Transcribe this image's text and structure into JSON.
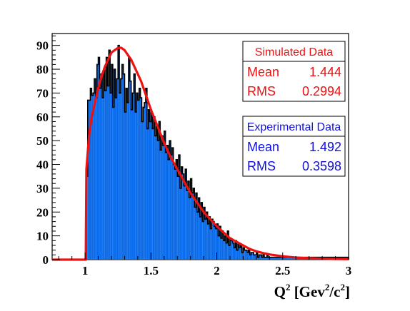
{
  "chart_data": {
    "type": "bar",
    "title": "",
    "xlabel": {
      "main": "Q",
      "sup1": "2",
      "open": " [Gev",
      "sup2": "2",
      "mid": "/c",
      "sup3": "2",
      "close": "]"
    },
    "ylabel": "",
    "xlim": [
      0.75,
      3.0
    ],
    "ylim": [
      0,
      95
    ],
    "x_ticks": [
      1,
      1.5,
      2,
      2.5,
      3
    ],
    "x_tick_labels": [
      "1",
      "1.5",
      "2",
      "2.5",
      "3"
    ],
    "y_ticks": [
      0,
      10,
      20,
      30,
      40,
      50,
      60,
      70,
      80,
      90
    ],
    "y_tick_labels": [
      "0",
      "10",
      "20",
      "30",
      "40",
      "50",
      "60",
      "70",
      "80",
      "90"
    ],
    "bin_width": 0.01,
    "series": [
      {
        "name": "Experimental Data",
        "color": "#0a6bea",
        "kind": "histogram-filled",
        "x_start": 1.0,
        "values": [
          0,
          35,
          67,
          67,
          72,
          69,
          70,
          76,
          68,
          82,
          85,
          72,
          78,
          68,
          80,
          71,
          85,
          73,
          88,
          70,
          82,
          64,
          80,
          68,
          76,
          90,
          70,
          76,
          82,
          78,
          62,
          72,
          66,
          85,
          75,
          63,
          70,
          78,
          62,
          70,
          67,
          72,
          68,
          58,
          64,
          66,
          72,
          55,
          63,
          58,
          62,
          55,
          60,
          52,
          56,
          50,
          58,
          46,
          52,
          48,
          54,
          45,
          48,
          42,
          50,
          44,
          47,
          40,
          38,
          42,
          35,
          44,
          30,
          39,
          36,
          31,
          38,
          29,
          33,
          26,
          34,
          28,
          30,
          22,
          28,
          20,
          26,
          18,
          24,
          16,
          22,
          17,
          20,
          15,
          18,
          13,
          17,
          16,
          14,
          13,
          15,
          10,
          14,
          9,
          12,
          8,
          10,
          7,
          12,
          6,
          9,
          8,
          7,
          5,
          8,
          4,
          7,
          5,
          6,
          3,
          5,
          4,
          4,
          3,
          4,
          2,
          3,
          3,
          2,
          2,
          3,
          1,
          2,
          2,
          1,
          2,
          1,
          1,
          2,
          1,
          1,
          1,
          1,
          1,
          1,
          1,
          1,
          1,
          1,
          1,
          1,
          1,
          1,
          1,
          1,
          1,
          1,
          1,
          1,
          1,
          1,
          1,
          1,
          1,
          1,
          1,
          1,
          1,
          1,
          1,
          1,
          1,
          1,
          1,
          1,
          1,
          1,
          1,
          1,
          1,
          1,
          1,
          1,
          1,
          1,
          1,
          1,
          1,
          1,
          1,
          1,
          1,
          1,
          1,
          1,
          1,
          1,
          1,
          1,
          1,
          1,
          1,
          1,
          1,
          1
        ]
      },
      {
        "name": "Simulated Data",
        "color": "#ee1111",
        "kind": "line",
        "points": [
          [
            0.75,
            0
          ],
          [
            1.0,
            0
          ],
          [
            1.005,
            0
          ],
          [
            1.01,
            38
          ],
          [
            1.03,
            52
          ],
          [
            1.05,
            60
          ],
          [
            1.075,
            66
          ],
          [
            1.1,
            72
          ],
          [
            1.125,
            77
          ],
          [
            1.15,
            81
          ],
          [
            1.175,
            84
          ],
          [
            1.2,
            87
          ],
          [
            1.225,
            88
          ],
          [
            1.25,
            89
          ],
          [
            1.275,
            89
          ],
          [
            1.3,
            88
          ],
          [
            1.325,
            86
          ],
          [
            1.35,
            84
          ],
          [
            1.375,
            81
          ],
          [
            1.4,
            78
          ],
          [
            1.425,
            75
          ],
          [
            1.45,
            71
          ],
          [
            1.475,
            67
          ],
          [
            1.5,
            63
          ],
          [
            1.55,
            56
          ],
          [
            1.6,
            49
          ],
          [
            1.65,
            43
          ],
          [
            1.7,
            38
          ],
          [
            1.75,
            33
          ],
          [
            1.8,
            28
          ],
          [
            1.85,
            24
          ],
          [
            1.9,
            20
          ],
          [
            1.95,
            17
          ],
          [
            2.0,
            14
          ],
          [
            2.05,
            11.5
          ],
          [
            2.1,
            9
          ],
          [
            2.15,
            7.5
          ],
          [
            2.2,
            6
          ],
          [
            2.25,
            4.5
          ],
          [
            2.3,
            3.5
          ],
          [
            2.35,
            2.8
          ],
          [
            2.4,
            2.2
          ],
          [
            2.5,
            1.4
          ],
          [
            2.6,
            0.9
          ],
          [
            2.7,
            0.6
          ],
          [
            2.8,
            0.4
          ],
          [
            2.9,
            0.3
          ],
          [
            3.0,
            0.2
          ]
        ]
      }
    ],
    "stats": [
      {
        "title": "Simulated Data",
        "color": "#ee1111",
        "rows": [
          {
            "label": "Mean",
            "value": "1.444"
          },
          {
            "label": "RMS",
            "value": "0.2994"
          }
        ]
      },
      {
        "title": "Experimental Data",
        "color": "#1010dd",
        "rows": [
          {
            "label": "Mean",
            "value": "1.492"
          },
          {
            "label": "RMS",
            "value": "0.3598"
          }
        ]
      }
    ],
    "grid": false,
    "legend_position": "top-right"
  }
}
